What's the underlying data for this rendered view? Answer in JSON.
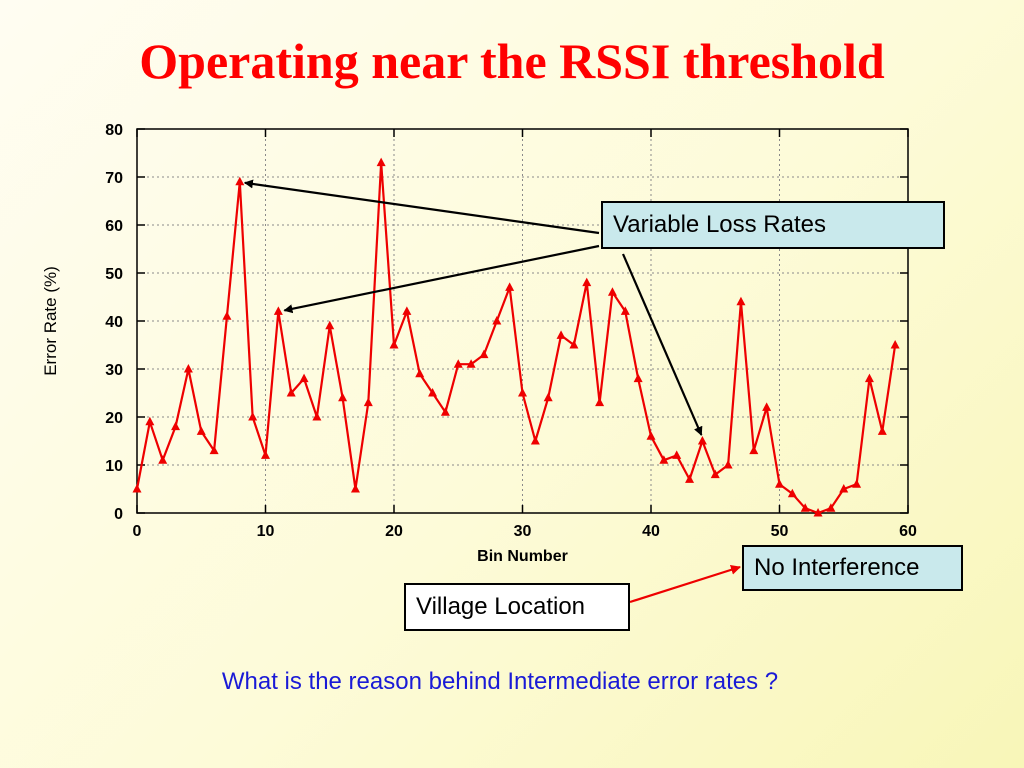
{
  "slide": {
    "title": "Operating near the RSSI threshold",
    "question": "What is the reason behind Intermediate error rates ?"
  },
  "callouts": {
    "variable_loss": "Variable Loss Rates",
    "no_interference": "No Interference",
    "village_location": "Village Location"
  },
  "colors": {
    "title": "#ff0000",
    "series": "#ee0000",
    "question": "#1a1ad6",
    "callout_fill": "#c9e9ec",
    "village_arrow": "#ee0000"
  },
  "chart_data": {
    "type": "line",
    "xlabel": "Bin Number",
    "ylabel": "Error Rate (%)",
    "xlim": [
      0,
      60
    ],
    "ylim": [
      0,
      80
    ],
    "xticks": [
      0,
      10,
      20,
      30,
      40,
      50,
      60
    ],
    "yticks": [
      0,
      10,
      20,
      30,
      40,
      50,
      60,
      70,
      80
    ],
    "grid": true,
    "marker": "triangle",
    "series": [
      {
        "x": [
          0,
          1,
          2,
          3,
          4,
          5,
          6,
          7,
          8,
          9,
          10,
          11,
          12,
          13,
          14,
          15,
          16,
          17,
          18,
          19,
          20,
          21,
          22,
          23,
          24,
          25,
          26,
          27,
          28,
          29,
          30,
          31,
          32,
          33,
          34,
          35,
          36,
          37,
          38,
          39,
          40,
          41,
          42,
          43,
          44,
          45,
          46,
          47,
          48,
          49,
          50,
          51,
          52,
          53,
          54,
          55,
          56,
          57,
          58,
          59
        ],
        "values": [
          5,
          19,
          11,
          18,
          30,
          17,
          13,
          41,
          69,
          20,
          12,
          42,
          25,
          28,
          20,
          39,
          24,
          5,
          23,
          73,
          35,
          42,
          29,
          25,
          21,
          31,
          31,
          33,
          40,
          47,
          25,
          15,
          24,
          37,
          35,
          48,
          23,
          46,
          42,
          28,
          16,
          11,
          12,
          7,
          15,
          8,
          10,
          44,
          13,
          22,
          6,
          4,
          1,
          0,
          1,
          5,
          6,
          28,
          17,
          35
        ]
      }
    ],
    "annotations": [
      {
        "label": "Variable Loss Rates",
        "targets": [
          [
            8,
            69
          ],
          [
            11,
            42
          ],
          [
            44,
            15
          ]
        ]
      },
      {
        "label": "No Interference",
        "targets": []
      },
      {
        "label": "Village Location",
        "targets": []
      }
    ]
  }
}
